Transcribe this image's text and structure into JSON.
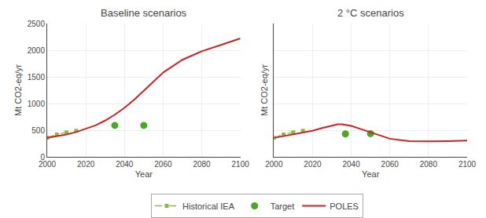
{
  "chart_data": [
    {
      "type": "line",
      "title": "Baseline scenarios",
      "xlabel": "Year",
      "ylabel": "Mt CO2-eq/yr",
      "xlim": [
        2000,
        2100
      ],
      "xticks": [
        2000,
        2020,
        2040,
        2060,
        2080,
        2100
      ],
      "ylim": [
        0,
        2500
      ],
      "yticks": [
        0,
        500,
        1000,
        1500,
        2000,
        2500
      ],
      "grid": true,
      "legend": "bottom",
      "series": [
        {
          "name": "Historical IEA",
          "type": "line",
          "color": "#88bb44",
          "line_style": "dashed",
          "marker": "square",
          "x": [
            2000,
            2005,
            2010,
            2015
          ],
          "values": [
            355,
            420,
            460,
            490
          ]
        },
        {
          "name": "Target",
          "type": "scatter",
          "color": "#44aa22",
          "marker": "circle",
          "x": [
            2035,
            2050
          ],
          "values": [
            590,
            590
          ]
        },
        {
          "name": "POLES",
          "type": "line",
          "color": "#cc2222",
          "line_style": "solid",
          "x": [
            2000,
            2005,
            2010,
            2015,
            2017,
            2020,
            2025,
            2030,
            2035,
            2040,
            2045,
            2050,
            2060,
            2070,
            2080,
            2090,
            2100
          ],
          "values": [
            355,
            385,
            420,
            465,
            490,
            525,
            590,
            680,
            790,
            920,
            1070,
            1240,
            1580,
            1820,
            1980,
            2100,
            2220
          ]
        }
      ]
    },
    {
      "type": "line",
      "title": "2 °C scenarios",
      "xlabel": "Year",
      "ylabel": "Mt CO2-eq/yr",
      "xlim": [
        2000,
        2100
      ],
      "xticks": [
        2000,
        2020,
        2040,
        2060,
        2080,
        2100
      ],
      "ylim": [
        0,
        2500
      ],
      "yticks": [
        0,
        500,
        1000,
        1500,
        2000,
        2500
      ],
      "grid": true,
      "legend": "bottom",
      "tick_labels": "x",
      "series": [
        {
          "name": "Historical IEA",
          "type": "line",
          "color": "#88bb44",
          "line_style": "dashed",
          "marker": "square",
          "x": [
            2000,
            2005,
            2010,
            2015
          ],
          "values": [
            355,
            420,
            460,
            490
          ]
        },
        {
          "name": "Target",
          "type": "scatter",
          "color": "#44aa22",
          "marker": "circle",
          "x": [
            2037,
            2050
          ],
          "values": [
            430,
            435
          ]
        },
        {
          "name": "POLES",
          "type": "line",
          "color": "#cc2222",
          "line_style": "solid",
          "x": [
            2000,
            2005,
            2010,
            2015,
            2017,
            2020,
            2025,
            2030,
            2033,
            2035,
            2040,
            2045,
            2050,
            2060,
            2070,
            2075,
            2080,
            2090,
            2100
          ],
          "values": [
            355,
            385,
            420,
            455,
            470,
            490,
            540,
            590,
            610,
            610,
            580,
            520,
            460,
            340,
            295,
            290,
            290,
            295,
            305
          ]
        }
      ]
    }
  ]
}
